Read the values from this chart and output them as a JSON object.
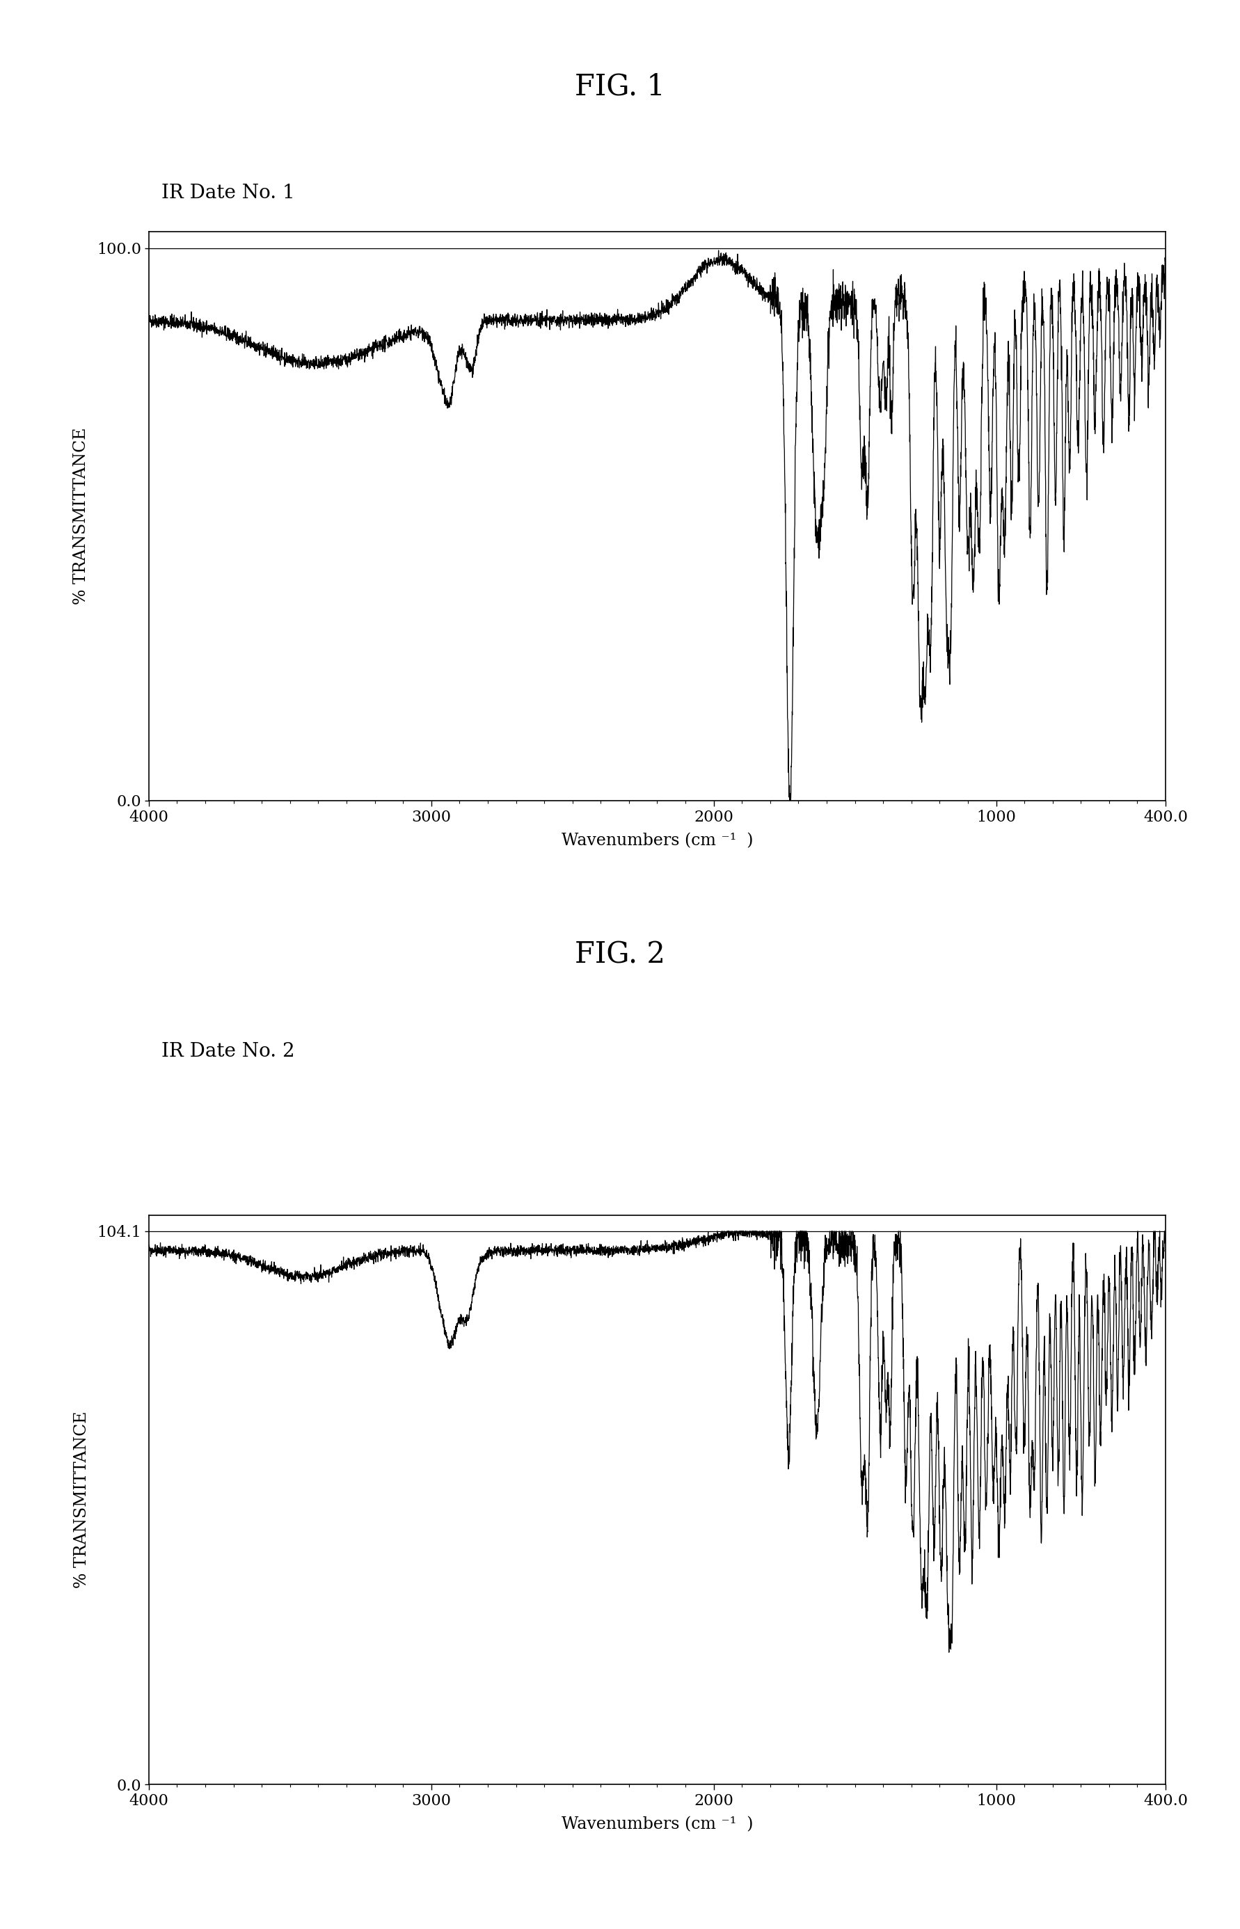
{
  "fig1_title": "FIG. 1",
  "fig2_title": "FIG. 2",
  "label1": "IR Date No. 1",
  "label2": "IR Date No. 2",
  "xlabel": "Wavenumbers (cm ⁻¹  )",
  "ylabel": "% TRANSMITTANCE",
  "xlim_left": 4000,
  "xlim_right": 400,
  "ytop1": 100.0,
  "ytop2": 104.1,
  "ybottom": 0.0,
  "background_color": "#ffffff",
  "line_color": "#000000",
  "title_fontsize": 30,
  "label_fontsize": 20,
  "axis_label_fontsize": 17,
  "tick_fontsize": 16
}
